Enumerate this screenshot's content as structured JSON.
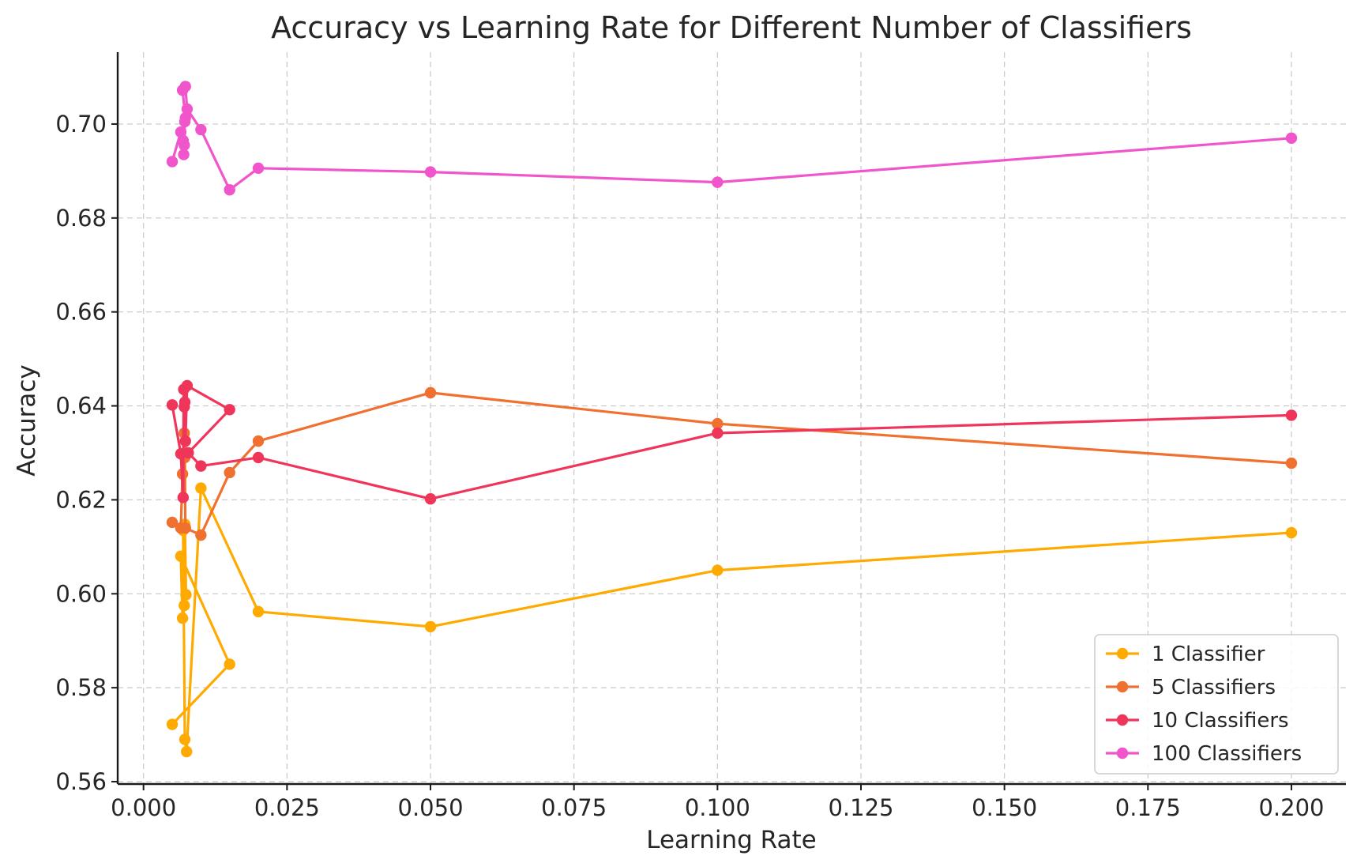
{
  "chart_data": {
    "type": "line",
    "title": "Accuracy vs Learning Rate for Different Number of Classifiers",
    "xlabel": "Learning Rate",
    "ylabel": "Accuracy",
    "xlim": [
      -0.0045,
      0.2095
    ],
    "ylim": [
      0.5595,
      0.7153
    ],
    "xticks": [
      0.0,
      0.025,
      0.05,
      0.075,
      0.1,
      0.125,
      0.15,
      0.175,
      0.2
    ],
    "xtick_labels": [
      "0.000",
      "0.025",
      "0.050",
      "0.075",
      "0.100",
      "0.125",
      "0.150",
      "0.175",
      "0.200"
    ],
    "yticks": [
      0.56,
      0.58,
      0.6,
      0.62,
      0.64,
      0.66,
      0.68,
      0.7
    ],
    "ytick_labels": [
      "0.56",
      "0.58",
      "0.60",
      "0.62",
      "0.64",
      "0.66",
      "0.68",
      "0.70"
    ],
    "grid": true,
    "legend_position": "lower-right",
    "series": [
      {
        "name": "1 Classifier",
        "color": "#FFAA00",
        "points": [
          [
            0.005,
            0.5722
          ],
          [
            0.015,
            0.585
          ],
          [
            0.0065,
            0.608
          ],
          [
            0.0068,
            0.5948
          ],
          [
            0.0071,
            0.5975
          ],
          [
            0.0074,
            0.5998
          ],
          [
            0.0072,
            0.6148
          ],
          [
            0.007,
            0.614
          ],
          [
            0.0069,
            0.6135
          ],
          [
            0.0072,
            0.569
          ],
          [
            0.0075,
            0.5664
          ],
          [
            0.01,
            0.6225
          ],
          [
            0.02,
            0.5962
          ],
          [
            0.05,
            0.593
          ],
          [
            0.1,
            0.605
          ],
          [
            0.2,
            0.613
          ]
        ]
      },
      {
        "name": "5 Classifiers",
        "color": "#F07030",
        "points": [
          [
            0.005,
            0.6152
          ],
          [
            0.0065,
            0.614
          ],
          [
            0.0068,
            0.6255
          ],
          [
            0.0071,
            0.6342
          ],
          [
            0.0074,
            0.63
          ],
          [
            0.0072,
            0.629
          ],
          [
            0.0073,
            0.614
          ],
          [
            0.01,
            0.6125
          ],
          [
            0.015,
            0.6258
          ],
          [
            0.02,
            0.6325
          ],
          [
            0.05,
            0.6428
          ],
          [
            0.1,
            0.6362
          ],
          [
            0.2,
            0.6278
          ]
        ]
      },
      {
        "name": "10 Classifiers",
        "color": "#F0355A",
        "points": [
          [
            0.005,
            0.6402
          ],
          [
            0.0065,
            0.6298
          ],
          [
            0.0069,
            0.6205
          ],
          [
            0.007,
            0.6435
          ],
          [
            0.0072,
            0.6408
          ],
          [
            0.0071,
            0.6398
          ],
          [
            0.0073,
            0.6325
          ],
          [
            0.0076,
            0.6443
          ],
          [
            0.015,
            0.6392
          ],
          [
            0.0078,
            0.63
          ],
          [
            0.01,
            0.6272
          ],
          [
            0.02,
            0.629
          ],
          [
            0.05,
            0.6202
          ],
          [
            0.1,
            0.6342
          ],
          [
            0.2,
            0.638
          ]
        ]
      },
      {
        "name": "100 Classifiers",
        "color": "#F055CC",
        "points": [
          [
            0.005,
            0.692
          ],
          [
            0.0065,
            0.6983
          ],
          [
            0.0069,
            0.6965
          ],
          [
            0.007,
            0.6935
          ],
          [
            0.0071,
            0.6955
          ],
          [
            0.0072,
            0.7005
          ],
          [
            0.0073,
            0.7013
          ],
          [
            0.0068,
            0.7072
          ],
          [
            0.0073,
            0.708
          ],
          [
            0.0076,
            0.7032
          ],
          [
            0.01,
            0.6988
          ],
          [
            0.015,
            0.686
          ],
          [
            0.02,
            0.6906
          ],
          [
            0.05,
            0.6898
          ],
          [
            0.1,
            0.6876
          ],
          [
            0.2,
            0.697
          ]
        ]
      }
    ]
  }
}
